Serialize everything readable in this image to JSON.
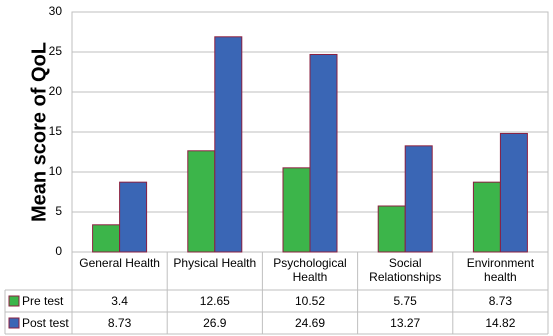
{
  "chart_data": {
    "type": "bar",
    "y_label": "Mean score of QoL",
    "categories": [
      "General Health",
      "Physical Health",
      "Psychological Health",
      "Social Relationships",
      "Environment health"
    ],
    "series": [
      {
        "name": "Pre test",
        "color": "#3cb54a",
        "values": [
          3.4,
          12.65,
          10.52,
          5.75,
          8.73
        ]
      },
      {
        "name": "Post test",
        "color": "#3a66b5",
        "values": [
          8.73,
          26.9,
          24.69,
          13.27,
          14.82
        ]
      }
    ],
    "ylim": [
      0,
      30
    ],
    "yticks": [
      0,
      5,
      10,
      15,
      20,
      25,
      30
    ],
    "grid": true
  }
}
